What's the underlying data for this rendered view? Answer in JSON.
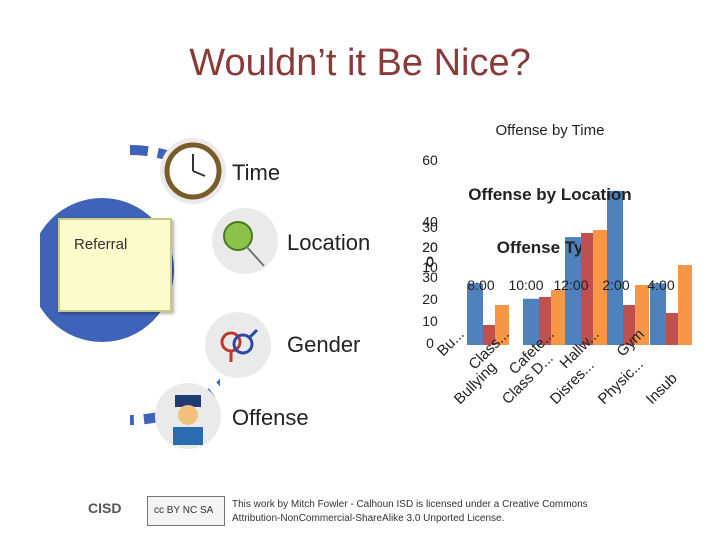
{
  "slide": {
    "title": "Wouldn’t it Be Nice?"
  },
  "items": [
    {
      "label": "Time",
      "icon": "clock-icon"
    },
    {
      "label": "Location",
      "icon": "pushpin-icon"
    },
    {
      "label": "Gender",
      "icon": "gender-symbols-icon"
    },
    {
      "label": "Offense",
      "icon": "officer-icon"
    }
  ],
  "referral": {
    "label": "Referral"
  },
  "charts": {
    "time_title": "Offense by Time",
    "location_title": "Offense by Location",
    "type_title": "Offense Type",
    "y_ticks_a": [
      "60",
      "40",
      "30",
      "20",
      "0"
    ],
    "y_ticks_b": [
      "20",
      "10",
      "0"
    ],
    "y_ticks_c": [
      "30",
      "20",
      "10",
      "0"
    ],
    "x_time_ticks": [
      "8:00",
      "10:00",
      "12:00",
      "2:00",
      "4:00"
    ],
    "x_location_ticks": [
      "Bu...",
      "Class...",
      "Cafete...",
      "Hallw...",
      "Gym"
    ],
    "x_type_ticks": [
      "Bullying",
      "Class D...",
      "Disres...",
      "Physic...",
      "Insub"
    ]
  },
  "chart_data": [
    {
      "type": "bar",
      "title": "Offense by Time",
      "categories": [
        "8:00",
        "10:00",
        "12:00",
        "2:00",
        "4:00"
      ],
      "values": [
        20,
        15,
        35,
        50,
        20
      ],
      "ylim": [
        0,
        60
      ]
    },
    {
      "type": "bar",
      "title": "Offense by Location",
      "categories": [
        "Bu...",
        "Class...",
        "Cafete...",
        "Hallw...",
        "Gym"
      ],
      "values": [
        5,
        12,
        28,
        10,
        8
      ],
      "ylim": [
        0,
        30
      ]
    },
    {
      "type": "bar",
      "title": "Offense Type",
      "categories": [
        "Bullying",
        "Class D...",
        "Disres...",
        "Physic...",
        "Insub"
      ],
      "values": [
        8,
        11,
        23,
        12,
        16
      ],
      "ylim": [
        0,
        30
      ]
    }
  ],
  "footer": {
    "logo": "CISD",
    "cc_badge": "cc BY NC SA",
    "license_line1": "This work by Mitch Fowler - Calhoun ISD is licensed under a Creative Commons",
    "license_line2": "Attribution-NonCommercial-ShareAlike 3.0 Unported License."
  },
  "colors": {
    "title": "#8b3a3a",
    "arc": "#3e63b8",
    "bar_blue": "#4f81bd",
    "bar_red": "#c0504d",
    "bar_orange": "#f79646"
  }
}
